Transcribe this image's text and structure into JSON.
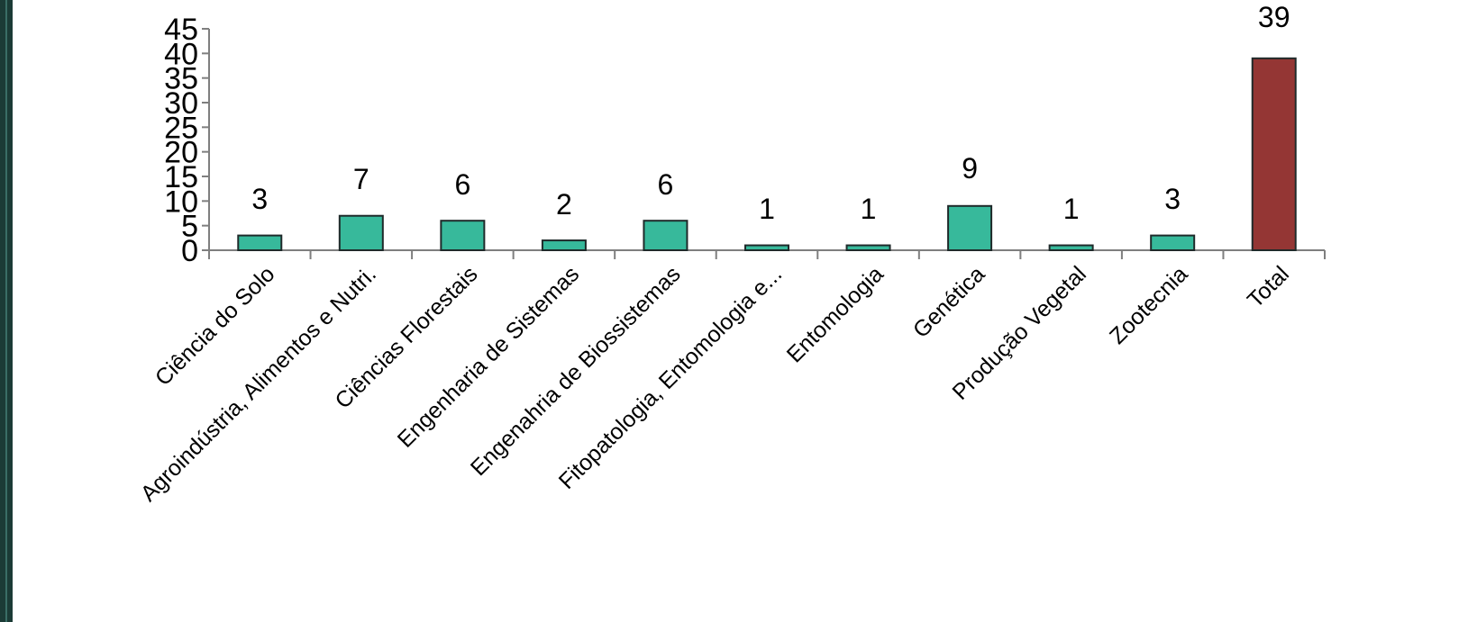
{
  "colors": {
    "bar": "#37b99b",
    "total_bar": "#943634",
    "bar_stroke": "#1f2a2a",
    "axis": "#7f7f7f",
    "frame": "#1b3b36"
  },
  "chart_data": {
    "type": "bar",
    "title": "",
    "xlabel": "",
    "ylabel": "",
    "categories": [
      "Ciência do Solo",
      "Agroindústria, Alimentos e Nutri.",
      "Ciências Florestais",
      "Engenharia de Sistemas",
      "Engenahria de Biossistemas",
      "Fitopatologia, Entomologia e...",
      "Entomologia",
      "Genética",
      "Produção Vegetal",
      "Zootecnia",
      "Total"
    ],
    "values": [
      3,
      7,
      6,
      2,
      6,
      1,
      1,
      9,
      1,
      3,
      39
    ],
    "data_labels": [
      "3",
      "7",
      "6",
      "2",
      "6",
      "1",
      "1",
      "9",
      "1",
      "3",
      "39"
    ],
    "highlight_index": 10,
    "ylim": [
      0,
      45
    ],
    "yticks": [
      "0",
      "5",
      "10",
      "15",
      "20",
      "25",
      "30",
      "35",
      "40",
      "45"
    ],
    "grid": false,
    "legend": "none"
  }
}
